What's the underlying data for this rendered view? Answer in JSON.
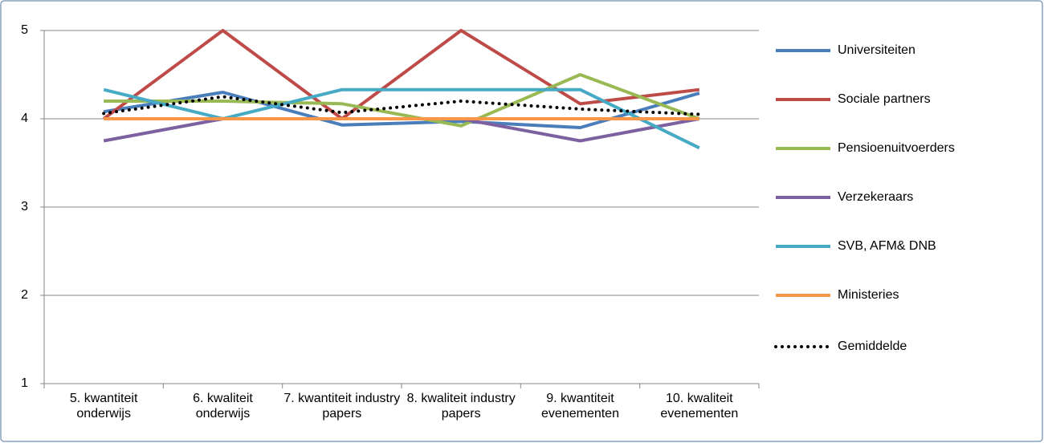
{
  "chart_data": {
    "type": "line",
    "categories": [
      "5. kwantiteit onderwijs",
      "6. kwaliteit onderwijs",
      "7. kwantiteit industry papers",
      "8. kwaliteit industry papers",
      "9. kwantiteit evenementen",
      "10. kwaliteit evenementen"
    ],
    "series": [
      {
        "name": "Universiteiten",
        "color": "#4a7ebb",
        "values": [
          4.08,
          4.3,
          3.93,
          3.97,
          3.9,
          4.29
        ]
      },
      {
        "name": "Sociale partners",
        "color": "#be4b48",
        "values": [
          4.0,
          5.0,
          4.0,
          5.0,
          4.17,
          4.33
        ]
      },
      {
        "name": "Pensioenuitvoerders",
        "color": "#98b954",
        "values": [
          4.2,
          4.2,
          4.17,
          3.92,
          4.5,
          4.0
        ]
      },
      {
        "name": "Verzekeraars",
        "color": "#7d60a0",
        "values": [
          3.75,
          4.0,
          4.0,
          4.0,
          3.75,
          4.0
        ]
      },
      {
        "name": "SVB, AFM& DNB",
        "color": "#46aac5",
        "values": [
          4.33,
          4.0,
          4.33,
          4.33,
          4.33,
          3.67
        ]
      },
      {
        "name": "Ministeries",
        "color": "#f79646",
        "values": [
          4.0,
          4.0,
          4.0,
          4.0,
          4.0,
          4.0
        ]
      },
      {
        "name": "Gemiddelde",
        "color": "#000000",
        "style": "dotted",
        "values": [
          4.06,
          4.25,
          4.07,
          4.2,
          4.11,
          4.05
        ]
      }
    ],
    "ylim": [
      1,
      5
    ],
    "yticks": [
      1,
      2,
      3,
      4,
      5
    ],
    "grid": true,
    "legend": "right"
  }
}
